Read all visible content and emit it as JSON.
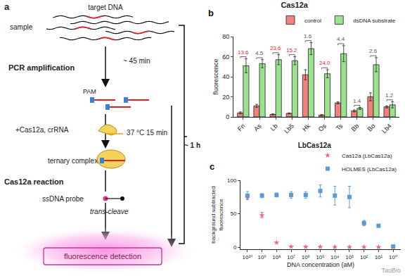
{
  "diagram": {
    "panel_label": "a",
    "target_label": "target DNA",
    "sample_label": "sample",
    "step1": "PCR amplification",
    "step1_time": "~ 45 min",
    "pam_label": "PAM",
    "reagents": "+Cas12a, crRNA",
    "complex_label": "ternary complex",
    "step2": "Cas12a reaction",
    "step2_time": "37 °C  15 min",
    "probe_label": "ssDNA probe",
    "cleave_label": "trans-cleave",
    "readout": "fluorescence detection",
    "total_time": "~ 1 h"
  },
  "chart_data": [
    {
      "type": "bar",
      "panel_label": "b",
      "title": "Cas12a",
      "y_label": "fluorescence",
      "categories": [
        "Fn",
        "As",
        "Lb",
        "Lb5",
        "Hk",
        "Os",
        "Ts",
        "Bb",
        "Bo",
        "Lb4"
      ],
      "series": [
        {
          "name": "control",
          "color": "#f4817f",
          "values": [
            4,
            11,
            2.5,
            3.5,
            42,
            1.8,
            14,
            6,
            20,
            10
          ],
          "errors": [
            1,
            1.5,
            0.5,
            0.5,
            5,
            0.5,
            1,
            1,
            4,
            1
          ]
        },
        {
          "name": "dsDNA substrate",
          "color": "#9be28e",
          "values": [
            51,
            53,
            57,
            56,
            68,
            43,
            63,
            8.5,
            52,
            12
          ],
          "errors": [
            7,
            4,
            5,
            4,
            6,
            4,
            8,
            1,
            7,
            3
          ]
        }
      ],
      "annotations": [
        {
          "category": "Fn",
          "text": "13.6",
          "color": "#e8262a"
        },
        {
          "category": "As",
          "text": "4.5",
          "color": "#555555"
        },
        {
          "category": "Lb",
          "text": "23.6",
          "color": "#e8262a"
        },
        {
          "category": "Lb5",
          "text": "15.2",
          "color": "#e8262a"
        },
        {
          "category": "Hk",
          "text": "1.6",
          "color": "#555555"
        },
        {
          "category": "Os",
          "text": "24.0",
          "color": "#e8262a"
        },
        {
          "category": "Ts",
          "text": "4.4",
          "color": "#555555"
        },
        {
          "category": "Bb",
          "text": "1.4",
          "color": "#555555"
        },
        {
          "category": "Bo",
          "text": "2.6",
          "color": "#555555"
        },
        {
          "category": "Lb4",
          "text": "1.2",
          "color": "#555555"
        }
      ],
      "ylim": [
        0,
        80
      ],
      "yticks": [
        0,
        20,
        40,
        60,
        80
      ],
      "grid": false,
      "legend": "top right"
    },
    {
      "type": "scatter",
      "panel_label": "c",
      "title": "LbCas12a",
      "x_label": "DNA concentration (aM)",
      "y_label": [
        "background subtracted",
        "fluorescence"
      ],
      "log": "x",
      "x": [
        10000000000,
        1000000000,
        100000000,
        10000000,
        1000000,
        100000,
        10000,
        1000,
        100,
        10,
        1
      ],
      "series": [
        {
          "name": "Cas12a (LbCas12a)",
          "color": "#f06292",
          "marker": "star",
          "values": [
            75,
            48,
            7,
            0.8,
            0.5,
            0.5,
            0.3,
            0.3,
            0.3,
            0.3,
            0.3
          ],
          "errors": [
            4,
            4,
            0,
            0,
            0,
            0,
            0,
            0,
            0,
            0,
            0
          ]
        },
        {
          "name": "HOLMES (LbCas12a)",
          "color": "#5b9bd5",
          "marker": "square",
          "values": [
            77,
            77,
            78,
            78,
            78,
            84,
            77,
            75,
            36,
            32,
            1
          ],
          "errors": [
            6,
            3,
            3,
            5,
            5,
            9,
            14,
            16,
            4,
            2,
            2
          ]
        }
      ],
      "xlim": [
        30000000000,
        0.3
      ],
      "xticks": [
        {
          "value": 10000000000,
          "label": "10¹⁰"
        },
        {
          "value": 1000000000,
          "label": "10⁹"
        },
        {
          "value": 100000000,
          "label": "10⁸"
        },
        {
          "value": 10000000,
          "label": "10⁷"
        },
        {
          "value": 1000000,
          "label": "10⁶"
        },
        {
          "value": 100000,
          "label": "10⁵"
        },
        {
          "value": 10000,
          "label": "10⁴"
        },
        {
          "value": 1000,
          "label": "10³"
        },
        {
          "value": 100,
          "label": "10²"
        },
        {
          "value": 10,
          "label": "10¹"
        },
        {
          "value": 1,
          "label": "10⁰"
        }
      ],
      "ylim": [
        -3,
        100
      ],
      "yticks": [
        0,
        50,
        100
      ],
      "grid": false,
      "legend": "top right"
    }
  ],
  "watermark": "TaoBio"
}
